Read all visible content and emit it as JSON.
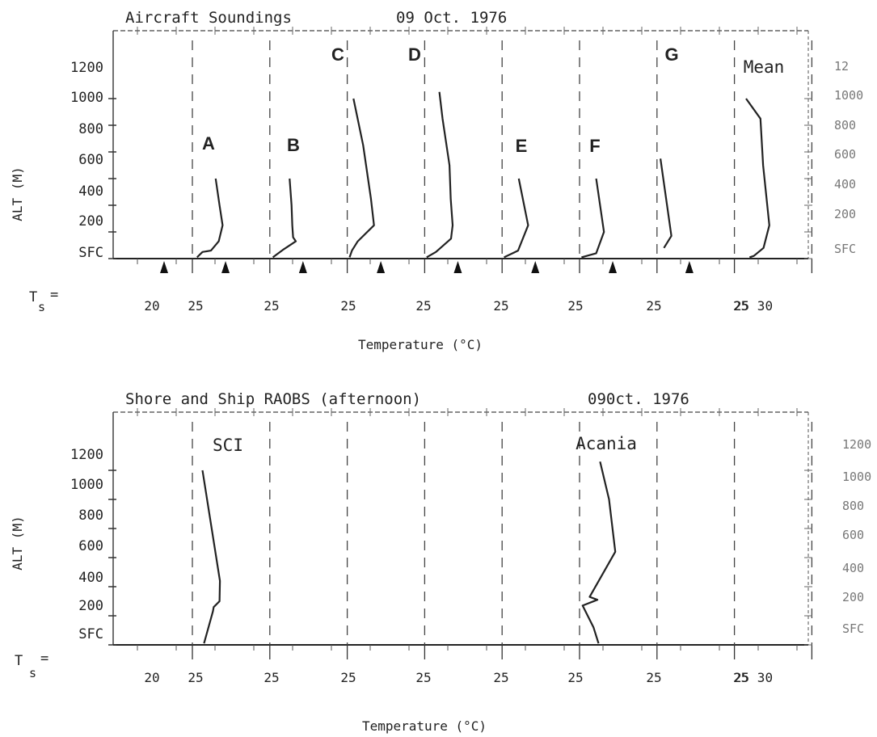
{
  "chart_data": [
    {
      "type": "line",
      "title": "Aircraft Soundings",
      "date": "09 Oct. 1976",
      "ylabel": "ALT (M)",
      "xlabel": "Temperature (°C)",
      "ts_label": "T",
      "ts_sub": "s",
      "ts_eq": "=",
      "x_tick_labels": [
        "20",
        "25",
        "25",
        "25",
        "25",
        "25",
        "25",
        "25",
        "25",
        "25 30"
      ],
      "y_tick_labels": [
        "SFC",
        "200",
        "400",
        "600",
        "800",
        "1000",
        "1200"
      ],
      "right_tick_labels": [
        "SFC",
        "200",
        "400",
        "600",
        "800",
        "1000",
        "12"
      ],
      "sea_surface_temperature_markers": [
        20.4,
        23.3,
        23.3,
        23.4,
        23.3,
        23.3,
        23.3,
        23.1
      ],
      "series": [
        {
          "name": "A",
          "points": [
            [
              22.2,
              10
            ],
            [
              23.6,
              50
            ],
            [
              25.8,
              60
            ],
            [
              27.8,
              130
            ],
            [
              28.8,
              250
            ],
            [
              28.0,
              400
            ],
            [
              27.0,
              600
            ]
          ]
        },
        {
          "name": "B",
          "points": [
            [
              21.8,
              10
            ],
            [
              24.6,
              70
            ],
            [
              27.7,
              130
            ],
            [
              27.0,
              160
            ],
            [
              26.8,
              250
            ],
            [
              26.6,
              400
            ],
            [
              26.1,
              600
            ]
          ]
        },
        {
          "name": "C",
          "points": [
            [
              21.6,
              10
            ],
            [
              22.2,
              60
            ],
            [
              23.7,
              130
            ],
            [
              27.9,
              250
            ],
            [
              27.1,
              450
            ],
            [
              25.1,
              850
            ],
            [
              22.6,
              1200
            ]
          ]
        },
        {
          "name": "D",
          "points": [
            [
              21.5,
              10
            ],
            [
              23.9,
              50
            ],
            [
              27.8,
              150
            ],
            [
              28.2,
              250
            ],
            [
              27.7,
              450
            ],
            [
              27.4,
              700
            ],
            [
              25.6,
              1050
            ],
            [
              24.8,
              1250
            ]
          ]
        },
        {
          "name": "E",
          "points": [
            [
              21.5,
              10
            ],
            [
              23.7,
              40
            ],
            [
              25.1,
              60
            ],
            [
              27.7,
              250
            ],
            [
              25.3,
              600
            ]
          ]
        },
        {
          "name": "F",
          "points": [
            [
              21.5,
              10
            ],
            [
              25.3,
              40
            ],
            [
              27.3,
              200
            ],
            [
              25.3,
              600
            ]
          ]
        },
        {
          "name": "G",
          "points": [
            [
              22.8,
              80
            ],
            [
              24.7,
              170
            ],
            [
              21.9,
              750
            ]
          ]
        },
        {
          "name": "Mean",
          "points": [
            [
              24.9,
              10
            ],
            [
              26.0,
              20
            ],
            [
              28.5,
              80
            ],
            [
              30.0,
              250
            ],
            [
              28.4,
              700
            ],
            [
              27.7,
              1050
            ],
            [
              24.0,
              1200
            ]
          ]
        }
      ]
    },
    {
      "type": "line",
      "title": "Shore and Ship RAOBS (afternoon)",
      "date": "090ct. 1976",
      "ylabel": "ALT (M)",
      "xlabel": "Temperature (°C)",
      "ts_label": "T",
      "ts_sub": "s",
      "ts_eq": "=",
      "x_tick_labels": [
        "20",
        "25",
        "25",
        "25",
        "25",
        "25",
        "25",
        "25",
        "25",
        "25 30"
      ],
      "y_tick_labels": [
        "SFC",
        "200",
        "400",
        "600",
        "800",
        "1000",
        "1200"
      ],
      "right_tick_labels": [
        "SFC",
        "200",
        "400",
        "600",
        "800",
        "1000",
        "1200"
      ],
      "series": [
        {
          "name": "SCI",
          "points": [
            [
              24.0,
              10
            ],
            [
              26.3,
              230
            ],
            [
              26.5,
              260
            ],
            [
              28.0,
              300
            ],
            [
              28.1,
              440
            ],
            [
              23.6,
              1200
            ]
          ]
        },
        {
          "name": "Acania",
          "points": [
            [
              25.9,
              10
            ],
            [
              24.6,
              120
            ],
            [
              21.8,
              270
            ],
            [
              25.6,
              310
            ],
            [
              23.6,
              330
            ],
            [
              30.2,
              640
            ],
            [
              28.6,
              1000
            ],
            [
              26.3,
              1260
            ]
          ]
        }
      ]
    }
  ]
}
